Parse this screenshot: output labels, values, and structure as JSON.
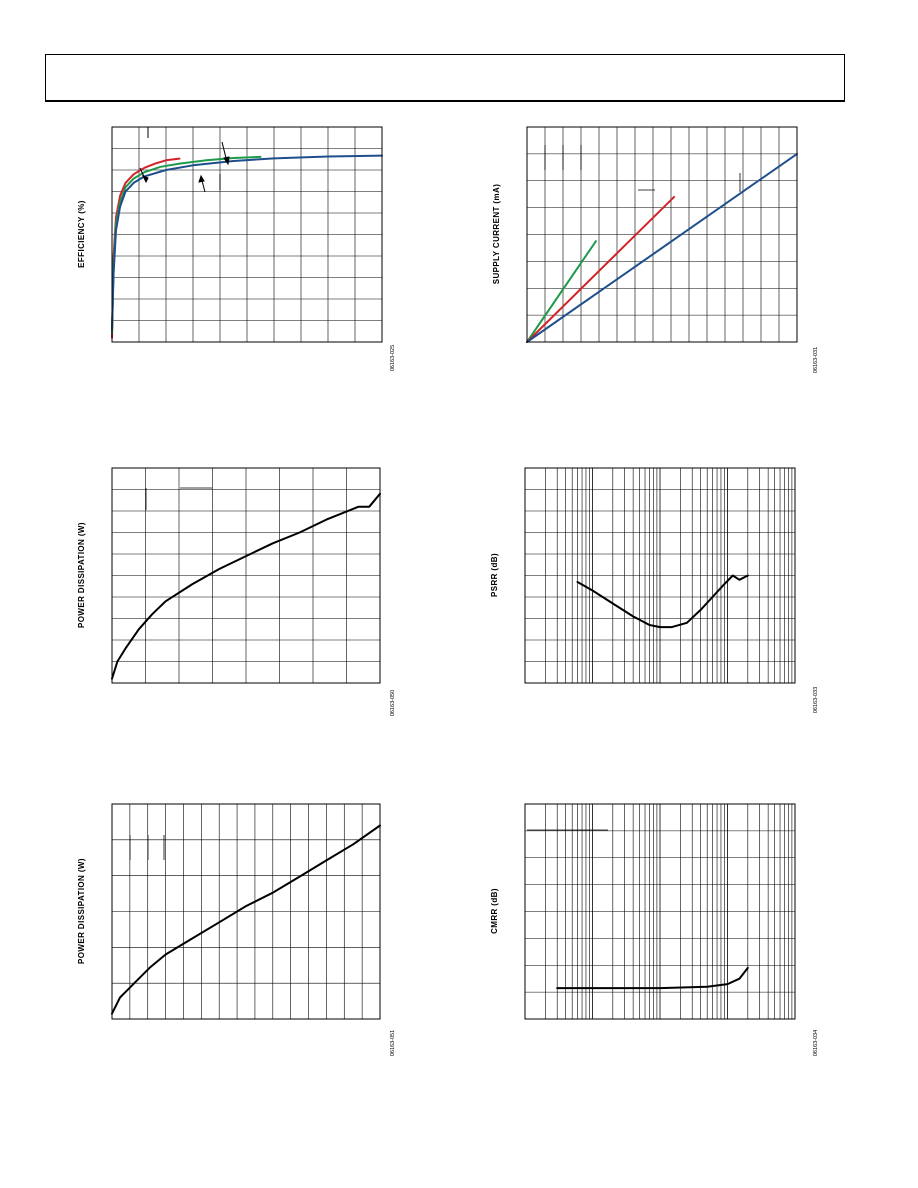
{
  "chart_data": [
    {
      "id": "efficiency",
      "type": "line",
      "ylabel": "EFFICIENCY (%)",
      "figure_id": "06163-025",
      "xlim": [
        0,
        1
      ],
      "ylim": [
        0,
        100
      ],
      "x_divisions": 10,
      "y_divisions": 10,
      "grid": true,
      "series": [
        {
          "color": "#d2232a",
          "points": [
            [
              0.0,
              2
            ],
            [
              0.006,
              40
            ],
            [
              0.015,
              58
            ],
            [
              0.03,
              68
            ],
            [
              0.05,
              74
            ],
            [
              0.08,
              78
            ],
            [
              0.12,
              81
            ],
            [
              0.16,
              83
            ],
            [
              0.2,
              84.5
            ],
            [
              0.25,
              85.3
            ]
          ]
        },
        {
          "color": "#1f9a4b",
          "points": [
            [
              0.0,
              4
            ],
            [
              0.006,
              36
            ],
            [
              0.015,
              55
            ],
            [
              0.03,
              65
            ],
            [
              0.05,
              72
            ],
            [
              0.08,
              76
            ],
            [
              0.12,
              79
            ],
            [
              0.18,
              81.5
            ],
            [
              0.25,
              83
            ],
            [
              0.35,
              84.5
            ],
            [
              0.45,
              85.6
            ],
            [
              0.55,
              86.1
            ]
          ]
        },
        {
          "color": "#1f4e8c",
          "points": [
            [
              0.0,
              6
            ],
            [
              0.006,
              32
            ],
            [
              0.015,
              52
            ],
            [
              0.03,
              63
            ],
            [
              0.05,
              70
            ],
            [
              0.08,
              74
            ],
            [
              0.12,
              77
            ],
            [
              0.2,
              80
            ],
            [
              0.3,
              82.2
            ],
            [
              0.45,
              84.2
            ],
            [
              0.6,
              85.4
            ],
            [
              0.8,
              86.3
            ],
            [
              1.0,
              86.7
            ]
          ]
        }
      ]
    },
    {
      "id": "supply-current",
      "type": "line",
      "ylabel": "SUPPLY CURRENT (mA)",
      "figure_id": "06163-031",
      "xlim": [
        0,
        1
      ],
      "ylim": [
        0,
        8
      ],
      "x_divisions": 15,
      "y_divisions": 8,
      "grid": true,
      "series": [
        {
          "color": "#1f9a4b",
          "points": [
            [
              0.0,
              0
            ],
            [
              0.255,
              3.75
            ]
          ]
        },
        {
          "color": "#d2232a",
          "points": [
            [
              0.0,
              0
            ],
            [
              0.545,
              5.4
            ]
          ]
        },
        {
          "color": "#1f4e8c",
          "points": [
            [
              0.0,
              0
            ],
            [
              1.0,
              7.0
            ]
          ]
        }
      ]
    },
    {
      "id": "power-dissipation-1",
      "type": "line",
      "ylabel": "POWER DISSIPATION (W)",
      "figure_id": "06163-050",
      "xlim": [
        0,
        1
      ],
      "ylim": [
        0,
        10
      ],
      "x_divisions": 8,
      "y_divisions": 10,
      "grid": true,
      "series": [
        {
          "color": "#000000",
          "points": [
            [
              0.0,
              0.2
            ],
            [
              0.02,
              1.0
            ],
            [
              0.05,
              1.6
            ],
            [
              0.1,
              2.5
            ],
            [
              0.15,
              3.2
            ],
            [
              0.2,
              3.8
            ],
            [
              0.3,
              4.6
            ],
            [
              0.4,
              5.3
            ],
            [
              0.5,
              5.9
            ],
            [
              0.6,
              6.5
            ],
            [
              0.7,
              7.0
            ],
            [
              0.8,
              7.6
            ],
            [
              0.92,
              8.2
            ],
            [
              0.96,
              8.2
            ],
            [
              1.0,
              8.8
            ]
          ]
        }
      ]
    },
    {
      "id": "psrr",
      "type": "line",
      "ylabel": "PSRR (dB)",
      "figure_id": "06163-033",
      "x_scale": "log",
      "xlim": [
        1,
        10000
      ],
      "ylim": [
        0,
        10
      ],
      "y_divisions": 10,
      "grid": true,
      "series": [
        {
          "color": "#000000",
          "points": [
            [
              6,
              4.7
            ],
            [
              10,
              4.3
            ],
            [
              20,
              3.7
            ],
            [
              40,
              3.1
            ],
            [
              70,
              2.7
            ],
            [
              100,
              2.6
            ],
            [
              150,
              2.6
            ],
            [
              250,
              2.8
            ],
            [
              400,
              3.4
            ],
            [
              600,
              4.0
            ],
            [
              900,
              4.6
            ],
            [
              1200,
              5.0
            ],
            [
              1500,
              4.8
            ],
            [
              2000,
              5.0
            ]
          ]
        }
      ]
    },
    {
      "id": "power-dissipation-2",
      "type": "line",
      "ylabel": "POWER DISSIPATION (W)",
      "figure_id": "06163-051",
      "xlim": [
        0,
        1
      ],
      "ylim": [
        0,
        8
      ],
      "x_divisions": 15,
      "y_divisions": 6,
      "grid": true,
      "series": [
        {
          "color": "#000000",
          "points": [
            [
              0.0,
              0.2
            ],
            [
              0.03,
              0.8
            ],
            [
              0.08,
              1.3
            ],
            [
              0.14,
              1.9
            ],
            [
              0.2,
              2.4
            ],
            [
              0.3,
              3.0
            ],
            [
              0.4,
              3.6
            ],
            [
              0.5,
              4.2
            ],
            [
              0.6,
              4.7
            ],
            [
              0.7,
              5.3
            ],
            [
              0.8,
              5.9
            ],
            [
              0.9,
              6.5
            ],
            [
              1.0,
              7.2
            ]
          ]
        }
      ]
    },
    {
      "id": "cmrr",
      "type": "line",
      "ylabel": "CMRR (dB)",
      "figure_id": "06163-034",
      "x_scale": "log",
      "xlim": [
        1,
        10000
      ],
      "ylim": [
        0,
        8
      ],
      "y_divisions": 8,
      "grid": true,
      "series": [
        {
          "color": "#000000",
          "points": [
            [
              3,
              1.15
            ],
            [
              10,
              1.15
            ],
            [
              100,
              1.15
            ],
            [
              500,
              1.2
            ],
            [
              1000,
              1.3
            ],
            [
              1500,
              1.5
            ],
            [
              2000,
              1.9
            ]
          ]
        }
      ]
    }
  ]
}
